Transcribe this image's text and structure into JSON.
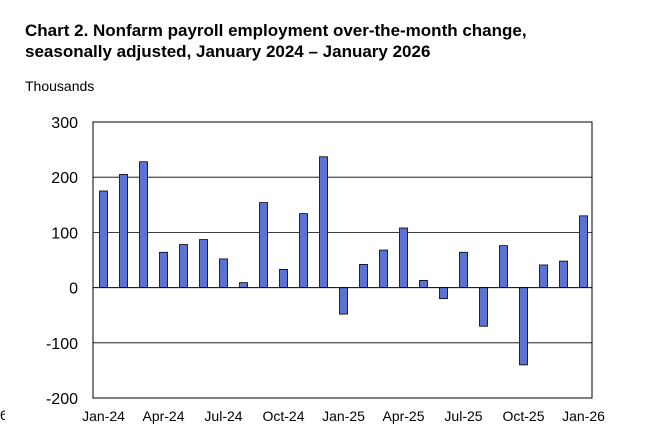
{
  "title_line1": "Chart 2. Nonfarm payroll employment over-the-month change,",
  "title_line2": "seasonally adjusted, January 2024 – January 2026",
  "y_unit": "Thousands",
  "left_cut_glyph": "6",
  "colors": {
    "bar_fill": "#5B73D4",
    "bar_stroke": "#000000",
    "grid": "#000000",
    "frame": "#000000"
  },
  "chart_data": {
    "type": "bar",
    "categories": [
      "Jan-24",
      "Feb-24",
      "Mar-24",
      "Apr-24",
      "May-24",
      "Jun-24",
      "Jul-24",
      "Aug-24",
      "Sep-24",
      "Oct-24",
      "Nov-24",
      "Dec-24",
      "Jan-25",
      "Feb-25",
      "Mar-25",
      "Apr-25",
      "May-25",
      "Jun-25",
      "Jul-25",
      "Aug-25",
      "Sep-25",
      "Oct-25",
      "Nov-25",
      "Dec-25",
      "Jan-26"
    ],
    "values": [
      175,
      205,
      228,
      64,
      78,
      87,
      52,
      9,
      154,
      33,
      134,
      237,
      -48,
      42,
      68,
      108,
      13,
      -20,
      64,
      -70,
      76,
      -140,
      41,
      48,
      130
    ],
    "x_tick_labels": [
      "Jan-24",
      "Apr-24",
      "Jul-24",
      "Oct-24",
      "Jan-25",
      "Apr-25",
      "Jul-25",
      "Oct-25",
      "Jan-26"
    ],
    "y_ticks": [
      300,
      200,
      100,
      0,
      -100,
      -200
    ],
    "y_tick_labels": [
      "300",
      "200",
      "100",
      "0",
      "-100",
      "-200"
    ],
    "ylim": [
      -200,
      300
    ],
    "ylabel": "Thousands",
    "xlabel": "",
    "grid": "horizontal",
    "legend": "none"
  }
}
